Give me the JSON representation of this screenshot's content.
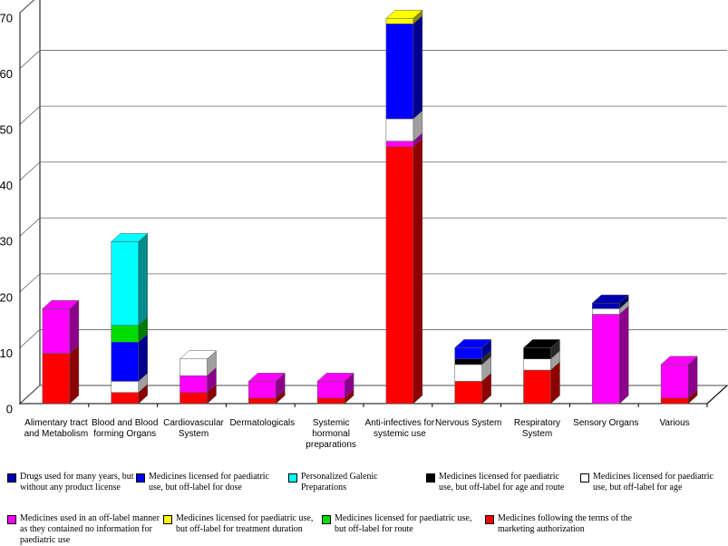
{
  "chart_data": {
    "type": "bar3d_stacked",
    "categories": [
      "Alimentary tract and Metabolism",
      "Blood and Blood forming Organs",
      "Cardiovascular System",
      "Dermatologicals",
      "Systemic hormonal preparations",
      "Anti-infectives for systemic use",
      "Nervous System",
      "Respiratory System",
      "Sensory Organs",
      "Various"
    ],
    "series": [
      {
        "name": "Medicines following the terms of the marketing authorization",
        "color": "#ff0000",
        "values": [
          9,
          2,
          2,
          1,
          1,
          46,
          4,
          6,
          0,
          1
        ]
      },
      {
        "name": "Medicines used in an off-label manner as they contained no information for paediatric use",
        "color": "#ff00ff",
        "values": [
          8,
          0,
          3,
          3,
          3,
          1,
          0,
          0,
          16,
          6
        ]
      },
      {
        "name": "Medicines licensed for paediatric use, but off-label for age",
        "color": "#ffffff",
        "values": [
          0,
          2,
          3,
          0,
          0,
          4,
          3,
          2,
          1,
          0
        ]
      },
      {
        "name": "Medicines licensed for paediatric use, but off-label for age and route",
        "color": "#000000",
        "values": [
          0,
          0,
          0,
          0,
          0,
          0,
          1,
          2,
          0,
          0
        ]
      },
      {
        "name": "Drugs used for many years, but without any product license",
        "color": "#0000b0",
        "values": [
          0,
          0,
          0,
          0,
          0,
          0,
          0,
          0,
          1,
          0
        ]
      },
      {
        "name": "Medicines licensed for paediatric use, but off-label for dose",
        "color": "#0000ff",
        "values": [
          0,
          7,
          0,
          0,
          0,
          17,
          2,
          0,
          0,
          0
        ]
      },
      {
        "name": "Medicines licensed for paediatric use, but off-label for route",
        "color": "#00dd00",
        "values": [
          0,
          3,
          0,
          0,
          0,
          0,
          0,
          0,
          0,
          0
        ]
      },
      {
        "name": "Personalized Galenic Preparations",
        "color": "#00ffff",
        "values": [
          0,
          15,
          0,
          0,
          0,
          0,
          0,
          0,
          0,
          0
        ]
      },
      {
        "name": "Medicines licensed for paediatric use, but off-label for treatment duration",
        "color": "#ffff00",
        "values": [
          0,
          0,
          0,
          0,
          0,
          1,
          0,
          0,
          0,
          0
        ]
      }
    ],
    "ylim": [
      0,
      70
    ],
    "yticks": [
      0,
      10,
      20,
      30,
      40,
      50,
      60,
      70
    ],
    "grid": true
  }
}
